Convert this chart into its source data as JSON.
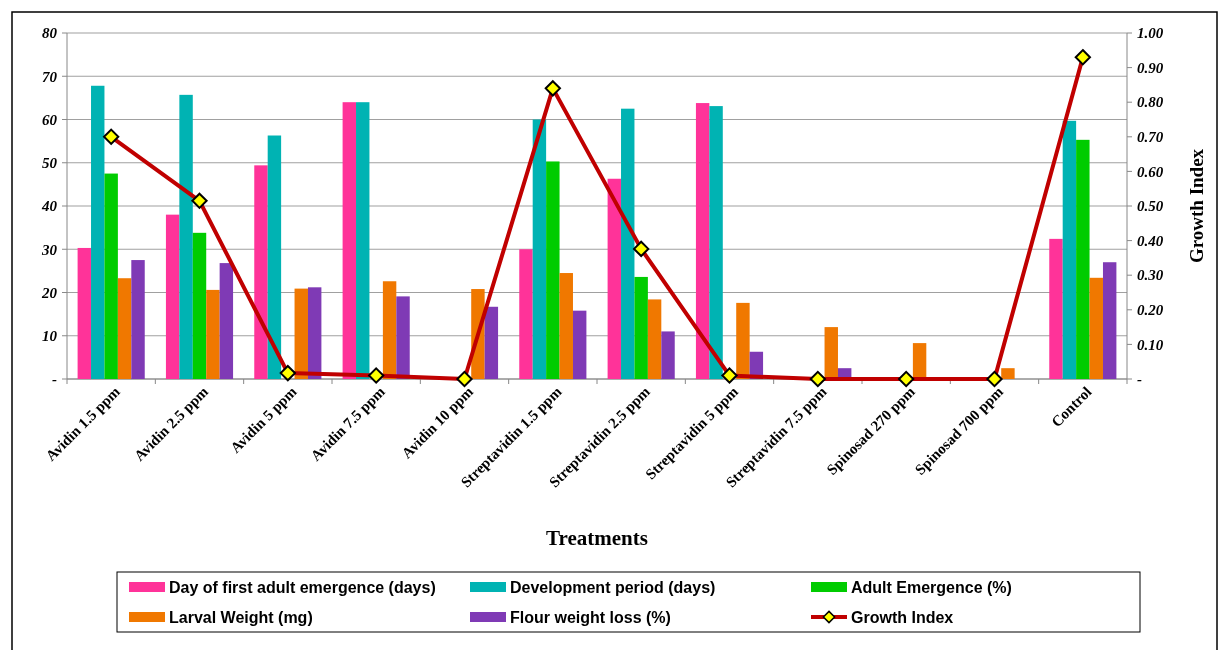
{
  "chart_data": {
    "type": "bar",
    "xlabel": "Treatments",
    "y2label": "Growth Index",
    "categories": [
      "Avidin 1.5 ppm",
      "Avidin 2.5 ppm",
      "Avidin 5 ppm",
      "Avidin 7.5 ppm",
      "Avidin 10 ppm",
      "Streptavidin 1.5 ppm",
      "Streptavidin 2.5 ppm",
      "Streptavidin 5 ppm",
      "Streptavidin 7.5 ppm",
      "Spinosad 270 ppm",
      "Spinosad 700 ppm",
      "Control"
    ],
    "series": [
      {
        "name": "Day of first adult emergence (days)",
        "color": "#ff3399",
        "values": [
          30.3,
          38,
          49.4,
          64,
          0,
          30,
          46.3,
          63.8,
          0,
          0,
          0,
          32.4
        ]
      },
      {
        "name": "Development period (days)",
        "color": "#00b3b3",
        "values": [
          67.8,
          65.7,
          56.3,
          64,
          0,
          60,
          62.5,
          63.1,
          0,
          0,
          0,
          59.7
        ]
      },
      {
        "name": "Adult Emergence (%)",
        "color": "#00cc00",
        "values": [
          47.5,
          33.8,
          0,
          0,
          0,
          50.3,
          23.6,
          0,
          0,
          0,
          0,
          55.3
        ]
      },
      {
        "name": "Larval Weight (mg)",
        "color": "#f07800",
        "values": [
          23.3,
          20.6,
          20.9,
          22.6,
          20.8,
          24.5,
          18.4,
          17.6,
          12,
          8.3,
          2.5,
          23.4
        ]
      },
      {
        "name": "Flour weight loss (%)",
        "color": "#7f3ab5",
        "values": [
          27.5,
          26.8,
          21.2,
          19.1,
          16.7,
          15.8,
          11,
          6.3,
          2.5,
          0,
          0,
          27
        ]
      },
      {
        "name": "Growth Index",
        "type": "line",
        "axis": "y2",
        "color": "#c00000",
        "marker": "diamond",
        "values": [
          0.7,
          0.515,
          0.017,
          0.01,
          0,
          0.84,
          0.376,
          0.01,
          0,
          0,
          0,
          0.93
        ]
      }
    ],
    "ylim": [
      0,
      80
    ],
    "yticks": [
      {
        "value": 0,
        "label": "-"
      },
      10,
      20,
      30,
      40,
      50,
      60,
      70,
      80
    ],
    "y2lim": [
      0,
      1
    ],
    "y2ticks": [
      {
        "value": 0,
        "label": "-"
      },
      {
        "value": 0.1,
        "label": "0.10"
      },
      {
        "value": 0.2,
        "label": "0.20"
      },
      {
        "value": 0.3,
        "label": "0.30"
      },
      {
        "value": 0.4,
        "label": "0.40"
      },
      {
        "value": 0.5,
        "label": "0.50"
      },
      {
        "value": 0.6,
        "label": "0.60"
      },
      {
        "value": 0.7,
        "label": "0.70"
      },
      {
        "value": 0.8,
        "label": "0.80"
      },
      {
        "value": 0.9,
        "label": "0.90"
      },
      {
        "value": 1,
        "label": "1.00"
      }
    ],
    "grid": "y",
    "legend": "bottom"
  }
}
